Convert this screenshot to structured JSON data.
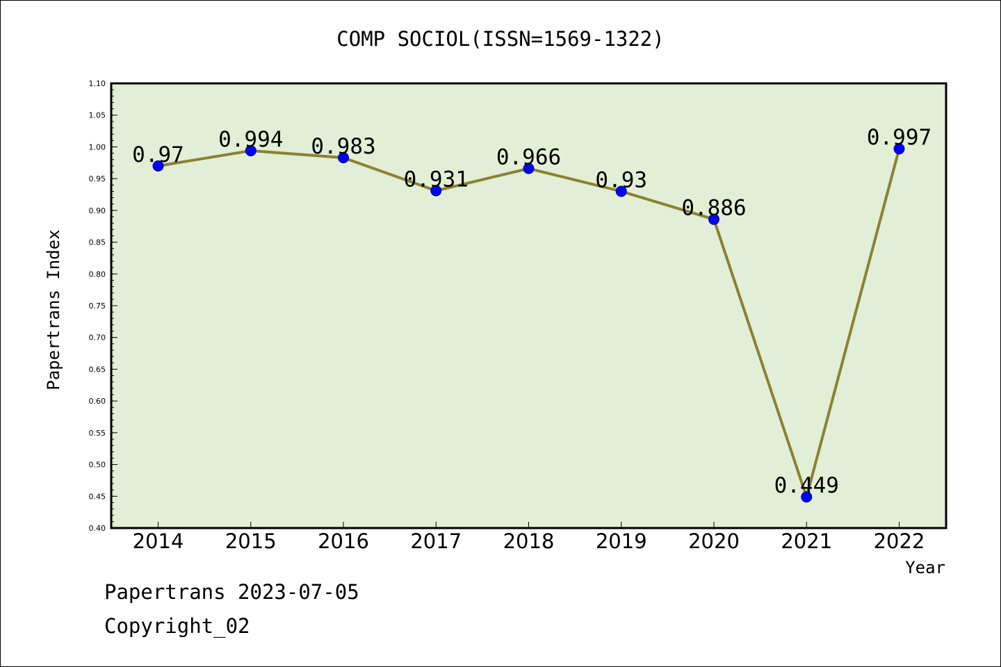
{
  "chart_data": {
    "type": "line",
    "title": "COMP SOCIOL(ISSN=1569-1322)",
    "xlabel": "Year",
    "ylabel": "Papertrans Index",
    "categories": [
      "2014",
      "2015",
      "2016",
      "2017",
      "2018",
      "2019",
      "2020",
      "2021",
      "2022"
    ],
    "series": [
      {
        "values": [
          0.97,
          0.994,
          0.983,
          0.931,
          0.966,
          0.93,
          0.886,
          0.449,
          0.997
        ]
      }
    ],
    "data_labels": [
      "0.97",
      "0.994",
      "0.983",
      "0.931",
      "0.966",
      "0.93",
      "0.886",
      "0.449",
      "0.997"
    ],
    "ylim": [
      0.4,
      1.1
    ],
    "yticks": [
      "0.40",
      "0.45",
      "0.50",
      "0.55",
      "0.60",
      "0.65",
      "0.70",
      "0.75",
      "0.80",
      "0.85",
      "0.90",
      "0.95",
      "1.00",
      "1.05",
      "1.10"
    ],
    "grid": false,
    "colors": {
      "plot_background": "#e2efd6",
      "line": "#8b8133",
      "marker": "#0000ff"
    }
  },
  "footer": {
    "date_line": "Papertrans 2023-07-05",
    "copyright": "Copyright_02"
  }
}
